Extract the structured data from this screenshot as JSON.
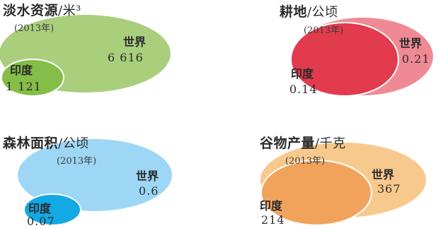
{
  "panels": [
    {
      "title": "淡水资源",
      "unit": "/米³",
      "year": "(2013年)",
      "world": {
        "label": "世界",
        "value": "6 616",
        "color": "#a9cf7d"
      },
      "india": {
        "label": "印度",
        "value": "1 121",
        "color": "#84bd47"
      }
    },
    {
      "title": "耕地",
      "unit": "/公顷",
      "year": "(2013年)",
      "world": {
        "label": "世界",
        "value": "0.21",
        "color": "#ef8a94"
      },
      "india": {
        "label": "印度",
        "value": "0.14",
        "color": "#e23b4d"
      }
    },
    {
      "title": "森林面积",
      "unit": "/公顷",
      "year": "(2013年)",
      "world": {
        "label": "世界",
        "value": "0.6",
        "color": "#9dd7f5"
      },
      "india": {
        "label": "印度",
        "value": "0.07",
        "color": "#12a9e4"
      }
    },
    {
      "title": "谷物产量",
      "unit": "/千克",
      "year": "(2013年)",
      "world": {
        "label": "世界",
        "value": "367",
        "color": "#f8c98d"
      },
      "india": {
        "label": "印度",
        "value": "214",
        "color": "#f1a35c"
      }
    }
  ]
}
